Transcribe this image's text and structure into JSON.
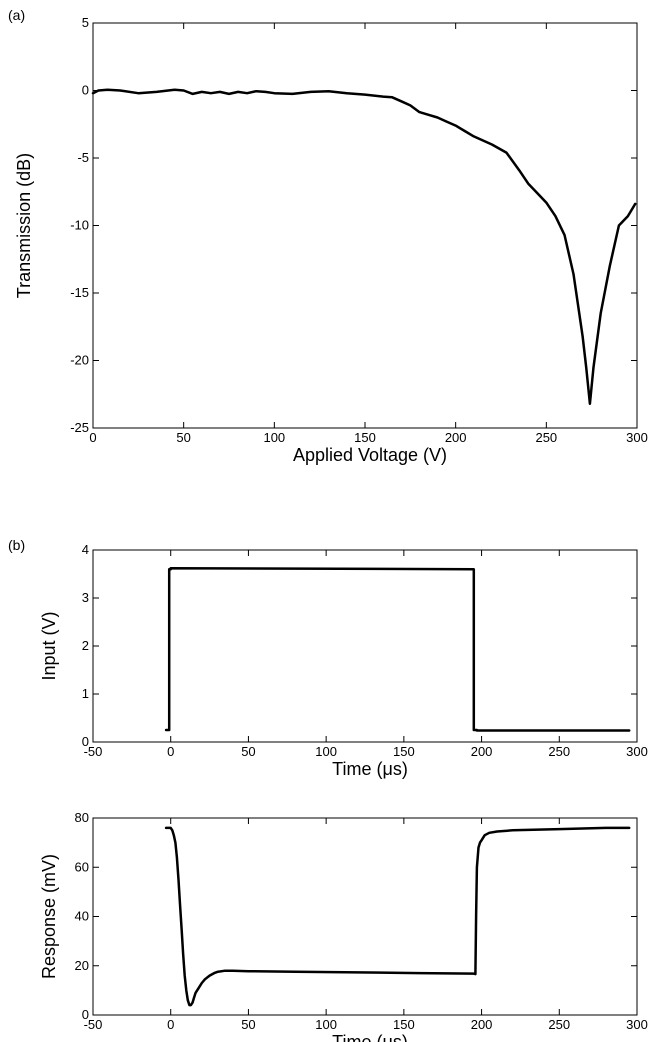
{
  "chart_data": [
    {
      "panel": "(a)",
      "type": "line",
      "xlabel": "Applied Voltage (V)",
      "ylabel": "Transmission (dB)",
      "xlim": [
        0,
        300
      ],
      "ylim": [
        -25,
        5
      ],
      "xticks": [
        0,
        50,
        100,
        150,
        200,
        250,
        300
      ],
      "yticks": [
        -25,
        -20,
        -15,
        -10,
        -5,
        0,
        5
      ],
      "grid": false,
      "series": [
        {
          "color": "#000000",
          "x": [
            0,
            3,
            8,
            15,
            25,
            35,
            45,
            50,
            55,
            60,
            65,
            70,
            75,
            80,
            85,
            90,
            95,
            100,
            110,
            120,
            130,
            140,
            150,
            160,
            165,
            170,
            175,
            180,
            185,
            190,
            195,
            200,
            205,
            210,
            220,
            228,
            235,
            240,
            245,
            250,
            255,
            260,
            265,
            270,
            272,
            274,
            276,
            280,
            285,
            290,
            295,
            299
          ],
          "y": [
            -0.2,
            0.0,
            0.05,
            0.0,
            -0.2,
            -0.1,
            0.05,
            0.0,
            -0.25,
            -0.1,
            -0.2,
            -0.1,
            -0.25,
            -0.1,
            -0.2,
            -0.05,
            -0.1,
            -0.2,
            -0.25,
            -0.1,
            -0.05,
            -0.2,
            -0.3,
            -0.45,
            -0.5,
            -0.8,
            -1.1,
            -1.6,
            -1.8,
            -2.0,
            -2.3,
            -2.6,
            -3.0,
            -3.4,
            -4.0,
            -4.6,
            -5.9,
            -6.9,
            -7.6,
            -8.3,
            -9.3,
            -10.7,
            -13.6,
            -18.2,
            -20.5,
            -23.2,
            -20.5,
            -16.5,
            -13.0,
            -10.0,
            -9.3,
            -8.4
          ]
        }
      ]
    },
    {
      "panel": "(b)",
      "type": "line",
      "xlabel": "Time (μs)",
      "ylabel": "Input (V)",
      "xlim": [
        -50,
        300
      ],
      "ylim": [
        0,
        4
      ],
      "xticks": [
        -50,
        0,
        50,
        100,
        150,
        200,
        250,
        300
      ],
      "yticks": [
        0,
        1,
        2,
        3,
        4
      ],
      "grid": false,
      "series": [
        {
          "color": "#000000",
          "x": [
            -3,
            -1,
            -1,
            0,
            0,
            195,
            195,
            197,
            197,
            295
          ],
          "y": [
            0.25,
            0.25,
            3.6,
            3.6,
            3.62,
            3.6,
            0.25,
            0.25,
            0.24,
            0.24
          ]
        }
      ]
    },
    {
      "type": "line",
      "xlabel": "Time (μs)",
      "ylabel": "Response (mV)",
      "xlim": [
        -50,
        300
      ],
      "ylim": [
        0,
        80
      ],
      "xticks": [
        -50,
        0,
        50,
        100,
        150,
        200,
        250,
        300
      ],
      "yticks": [
        0,
        20,
        40,
        60,
        80
      ],
      "grid": false,
      "series": [
        {
          "color": "#000000",
          "x": [
            -3,
            0,
            1,
            2,
            3,
            4,
            5,
            6,
            7,
            8,
            9,
            10,
            11,
            12,
            13,
            14,
            15,
            16,
            18,
            20,
            22,
            25,
            28,
            30,
            35,
            40,
            50,
            80,
            120,
            160,
            195,
            196,
            196.5,
            197,
            198,
            199,
            200,
            202,
            205,
            210,
            220,
            250,
            280,
            295
          ],
          "y": [
            76,
            76,
            75,
            73,
            70,
            64,
            55,
            45,
            35,
            25,
            16,
            10,
            6,
            4,
            4,
            5,
            7,
            9,
            11,
            13,
            14.5,
            16,
            17,
            17.5,
            18,
            18,
            17.8,
            17.6,
            17.3,
            17.0,
            16.8,
            16.6,
            40,
            60,
            68,
            70,
            71,
            73,
            74,
            74.5,
            75,
            75.5,
            76,
            76
          ]
        }
      ]
    }
  ]
}
